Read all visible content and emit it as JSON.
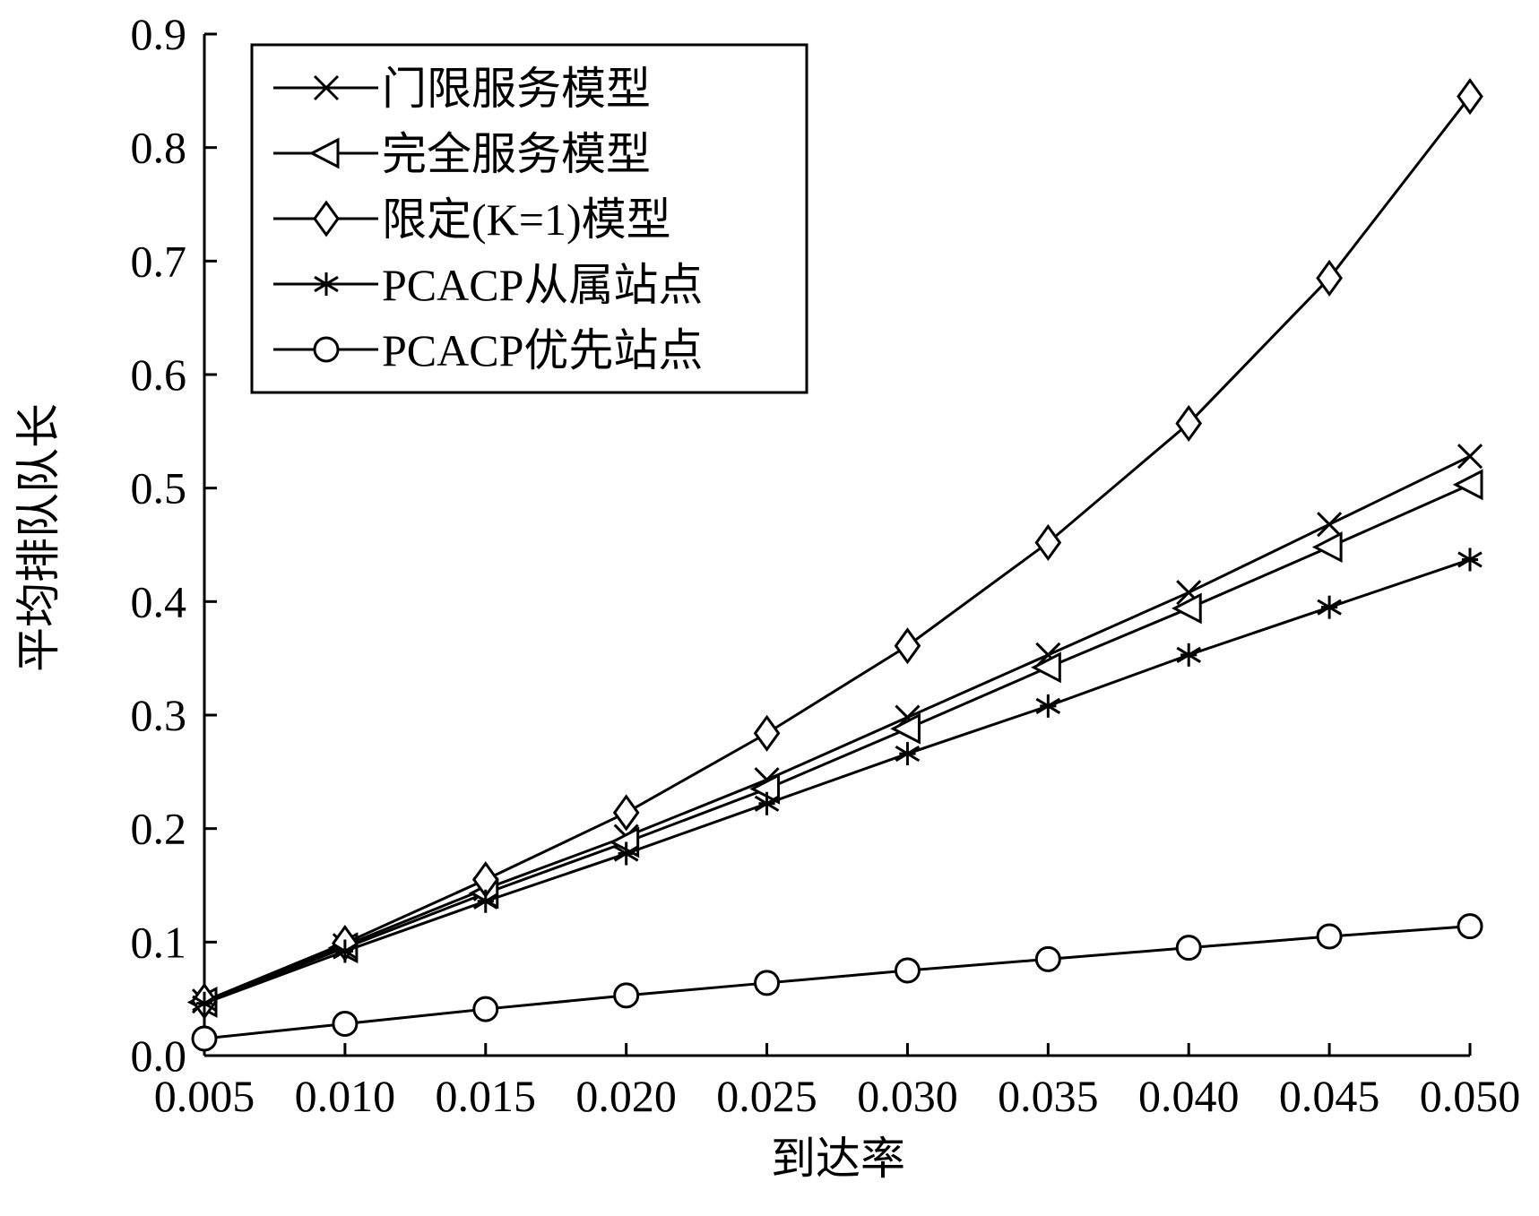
{
  "chart_data": {
    "type": "line",
    "xlabel": "到达率",
    "ylabel": "平均排队队长",
    "xlim": [
      0.005,
      0.05
    ],
    "ylim": [
      0,
      0.9
    ],
    "x": [
      0.005,
      0.01,
      0.015,
      0.02,
      0.025,
      0.03,
      0.035,
      0.04,
      0.045,
      0.05
    ],
    "x_tick_labels": [
      "0.005",
      "0.010",
      "0.015",
      "0.020",
      "0.025",
      "0.030",
      "0.035",
      "0.040",
      "0.045",
      "0.050"
    ],
    "y_ticks": [
      0.0,
      0.1,
      0.2,
      0.3,
      0.4,
      0.5,
      0.6,
      0.7,
      0.8,
      0.9
    ],
    "y_tick_labels": [
      "0.0",
      "0.1",
      "0.2",
      "0.3",
      "0.4",
      "0.5",
      "0.6",
      "0.7",
      "0.8",
      "0.9"
    ],
    "grid": false,
    "legend_position": "top-left",
    "series": [
      {
        "name": "门限服务模型",
        "marker": "x",
        "values": [
          0.048,
          0.097,
          0.147,
          0.193,
          0.243,
          0.298,
          0.353,
          0.408,
          0.468,
          0.528
        ]
      },
      {
        "name": "完全服务模型",
        "marker": "triangle-left",
        "values": [
          0.047,
          0.095,
          0.143,
          0.188,
          0.235,
          0.288,
          0.342,
          0.394,
          0.448,
          0.503
        ]
      },
      {
        "name": "限定(K=1)模型",
        "marker": "diamond",
        "values": [
          0.048,
          0.099,
          0.155,
          0.214,
          0.284,
          0.361,
          0.452,
          0.557,
          0.685,
          0.845
        ]
      },
      {
        "name": "PCACP从属站点",
        "marker": "asterisk",
        "values": [
          0.046,
          0.092,
          0.136,
          0.178,
          0.222,
          0.266,
          0.308,
          0.353,
          0.395,
          0.437
        ]
      },
      {
        "name": "PCACP优先站点",
        "marker": "circle",
        "values": [
          0.015,
          0.028,
          0.041,
          0.053,
          0.064,
          0.075,
          0.085,
          0.095,
          0.105,
          0.114
        ]
      }
    ]
  }
}
